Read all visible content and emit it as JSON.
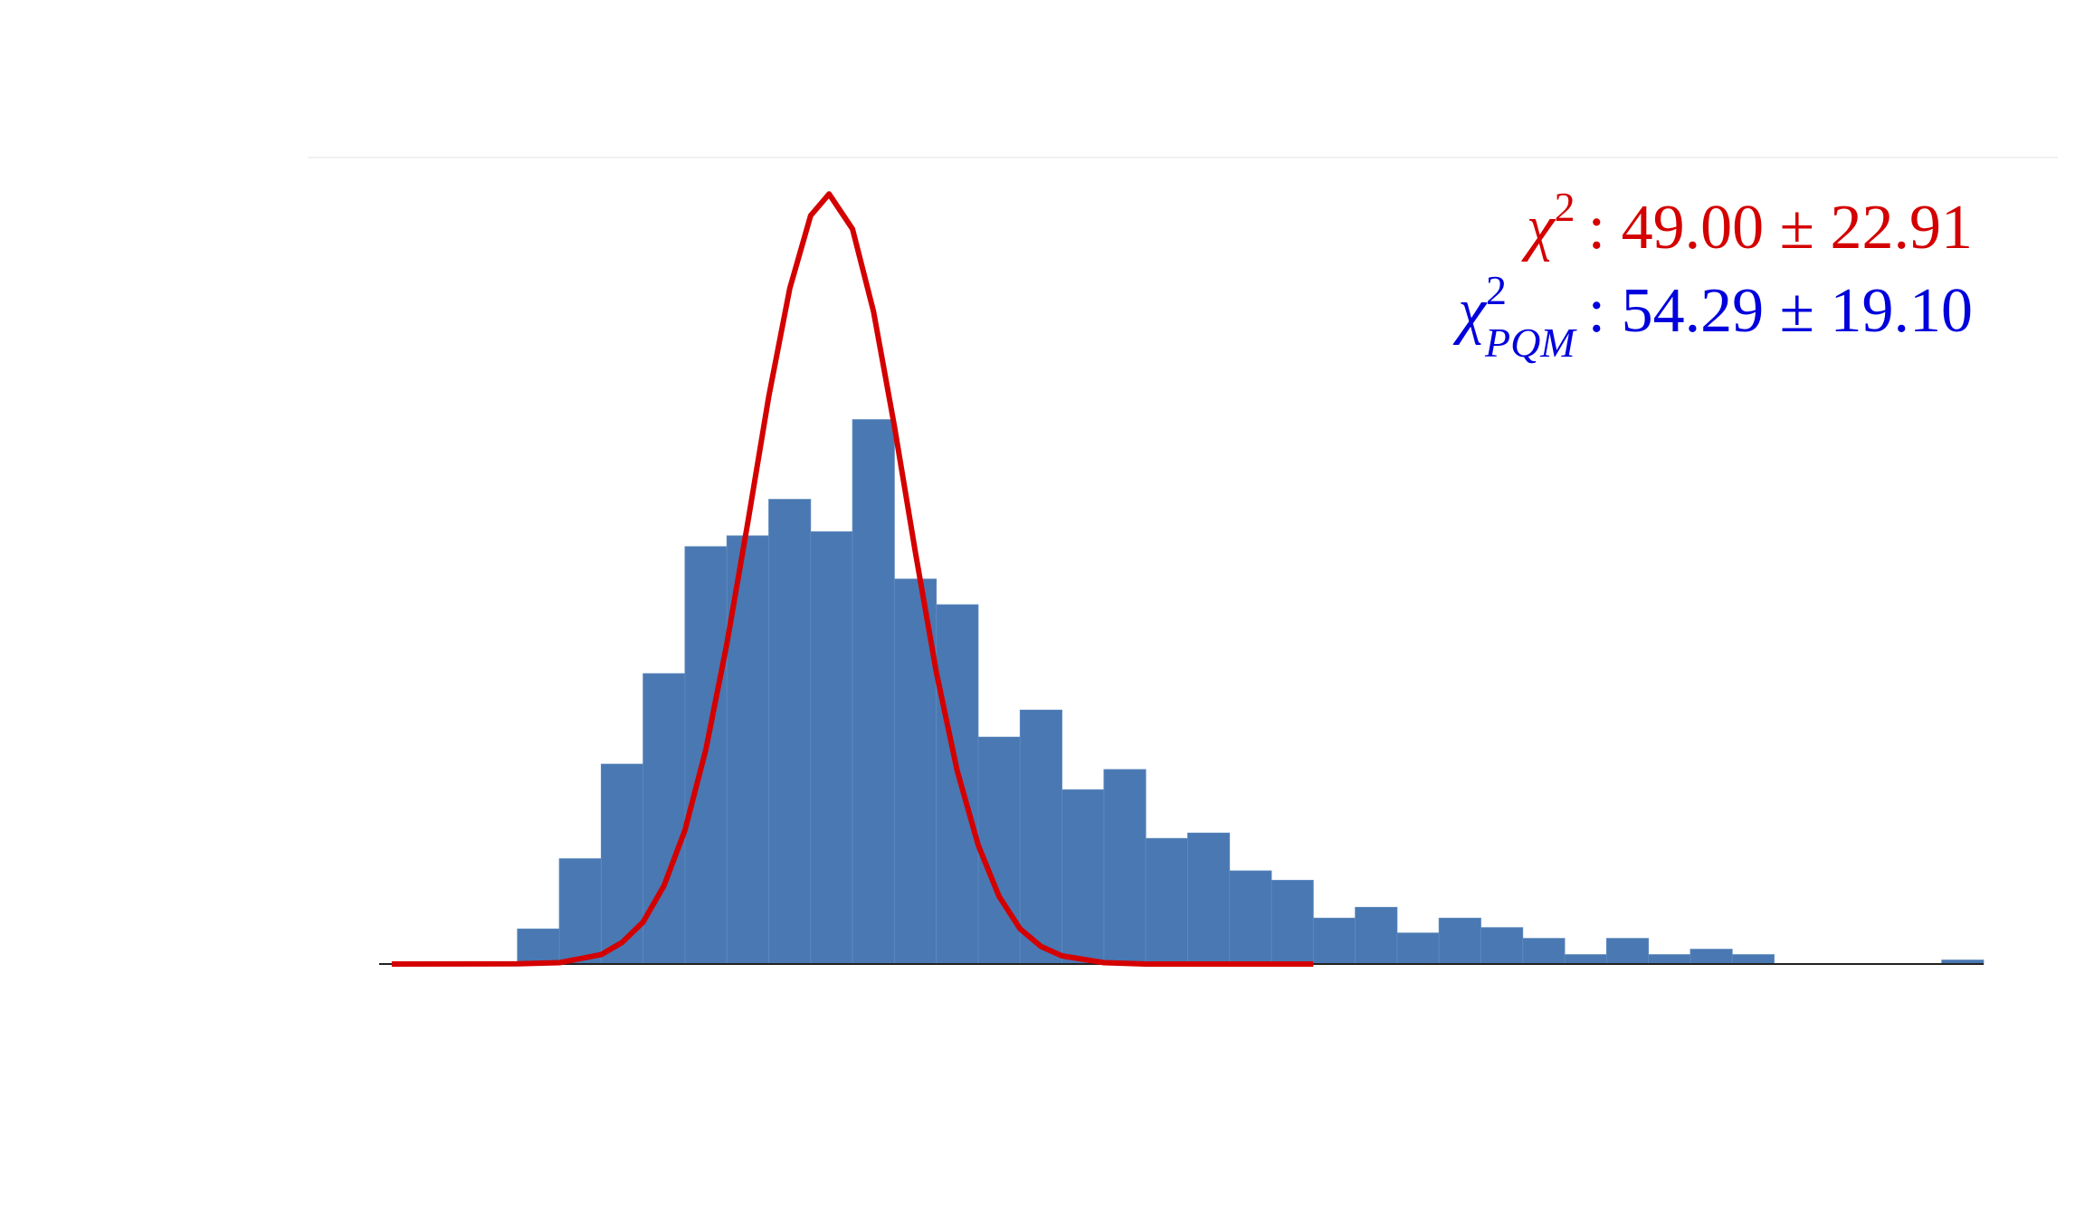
{
  "chart_data": {
    "type": "histogram",
    "bins": [
      0,
      1,
      2,
      3,
      4,
      5,
      6,
      7,
      8,
      9,
      10,
      11,
      12,
      13,
      14,
      15,
      16,
      17,
      18,
      19,
      20,
      21,
      22,
      23,
      24,
      25,
      26,
      27,
      28,
      29,
      30,
      31,
      32,
      33,
      34,
      35
    ],
    "values": [
      26,
      78,
      148,
      215,
      309,
      317,
      344,
      320,
      403,
      285,
      266,
      168,
      188,
      129,
      144,
      93,
      97,
      69,
      62,
      34,
      42,
      23,
      34,
      27,
      19,
      7,
      19,
      7,
      11,
      7,
      0,
      0,
      0,
      0,
      3
    ],
    "color": "#4a78b2",
    "xlim": [
      -3.3,
      35
    ],
    "ylim": [
      0,
      597
    ],
    "curve": {
      "color": "#d40000",
      "x": [
        -3,
        0,
        1,
        2,
        2.5,
        3,
        3.5,
        4,
        4.5,
        5,
        5.5,
        6,
        6.5,
        7,
        7.44,
        8,
        8.5,
        9,
        9.5,
        10,
        10.5,
        11,
        11.5,
        12,
        12.5,
        13,
        14,
        15,
        19
      ],
      "values": [
        0,
        0.2,
        1,
        7,
        16,
        31,
        58,
        99,
        159,
        237,
        327,
        420,
        500,
        554,
        570,
        544,
        483,
        398,
        305,
        216,
        143,
        88,
        50,
        26,
        13,
        6,
        1,
        0,
        0
      ]
    },
    "annotations": [
      {
        "symbol": "χ",
        "sup": "2",
        "text": ": 49.00 ± 22.91",
        "color": "#d40000"
      },
      {
        "symbol": "χ",
        "sup": "2",
        "sub": "PQM",
        "text": ": 54.29 ± 19.10",
        "color": "#0000dd"
      }
    ]
  }
}
